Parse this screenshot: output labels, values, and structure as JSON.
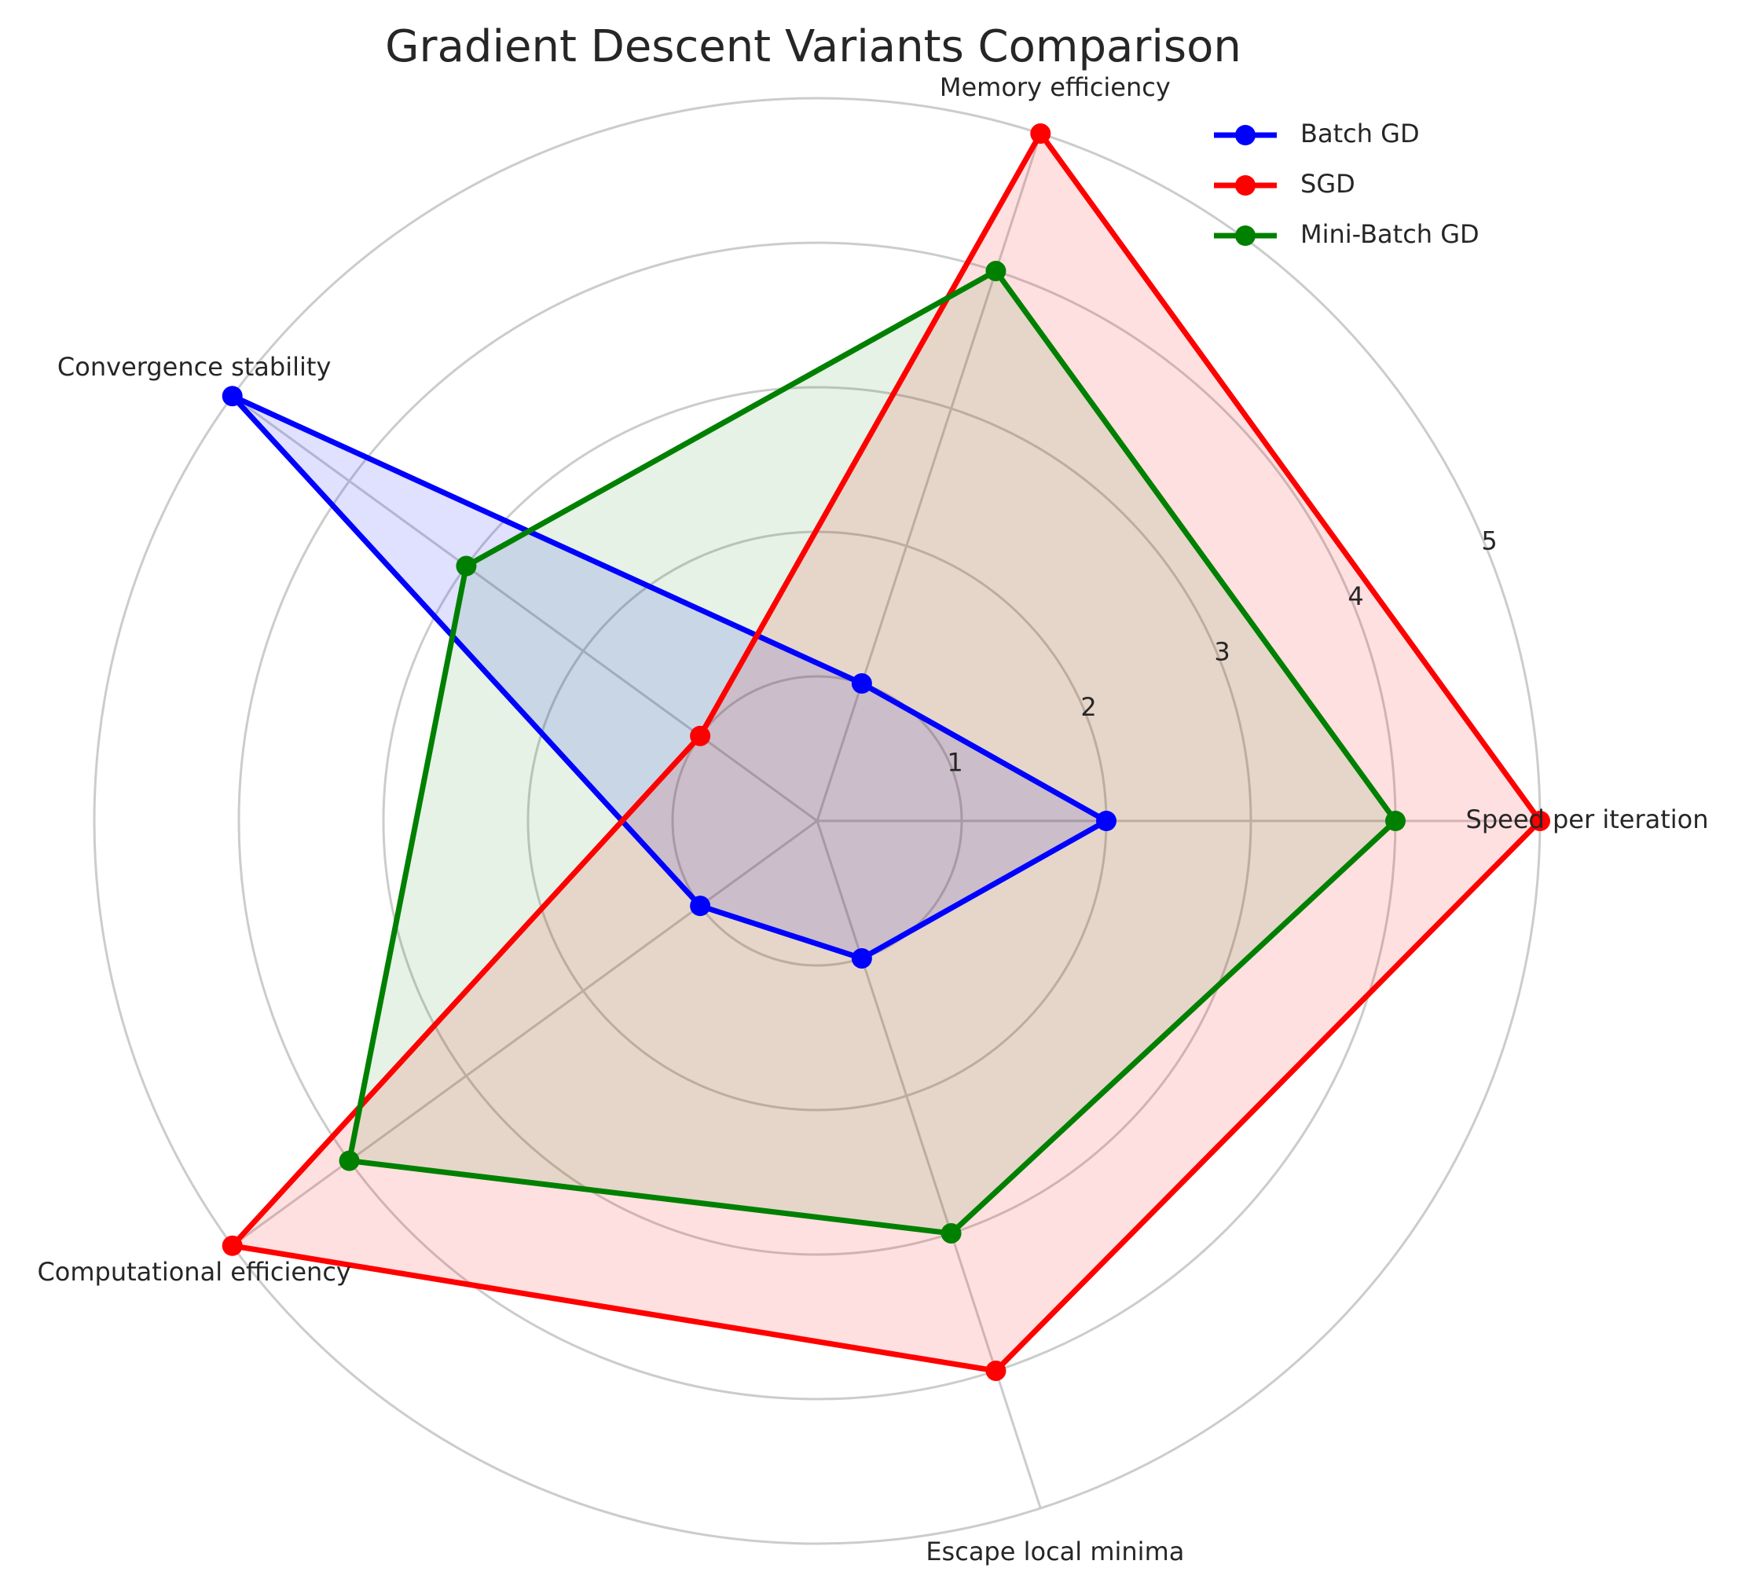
{
  "chart_data": {
    "type": "radar",
    "title": "Gradient Descent Variants Comparison",
    "categories": [
      "Speed per iteration",
      "Memory efficiency",
      "Convergence stability",
      "Computational efficiency",
      "Escape local minima"
    ],
    "rlim": [
      0,
      5
    ],
    "rticks": [
      "1",
      "2",
      "3",
      "4",
      "5"
    ],
    "grid": true,
    "legend_position": "top-right",
    "series": [
      {
        "name": "Batch GD",
        "values": [
          2,
          1,
          5,
          1,
          1
        ],
        "color": "#0000ff",
        "fill": "#0000ff",
        "fill_opacity": 0.12
      },
      {
        "name": "SGD",
        "values": [
          5,
          5,
          1,
          5,
          4
        ],
        "color": "#ff0000",
        "fill": "#ff0000",
        "fill_opacity": 0.12
      },
      {
        "name": "Mini-Batch GD",
        "values": [
          4,
          4,
          3,
          4,
          3
        ],
        "color": "#008000",
        "fill": "#008000",
        "fill_opacity": 0.1
      }
    ]
  }
}
